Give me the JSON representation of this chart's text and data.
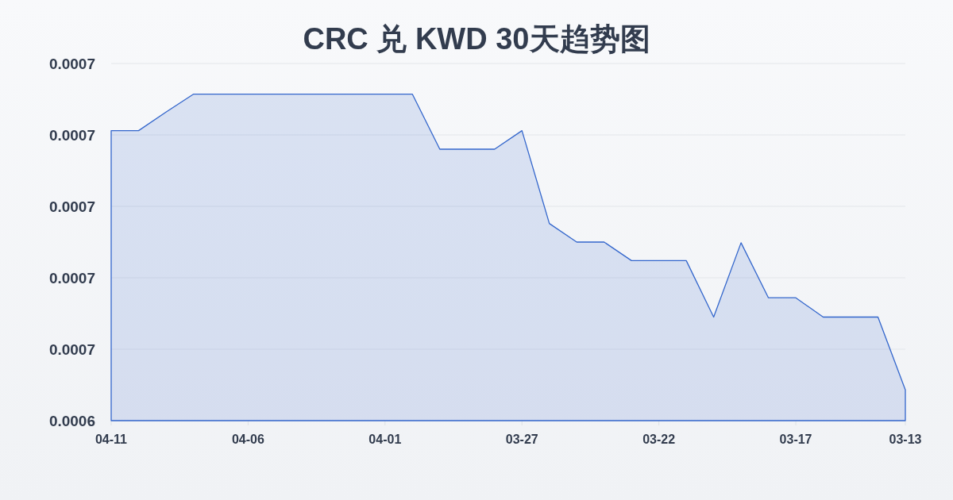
{
  "chart_data": {
    "type": "area",
    "title": "CRC 兑 KWD 30天趋势图",
    "categories": [
      "04-11",
      null,
      null,
      null,
      null,
      "04-06",
      null,
      null,
      null,
      null,
      "04-01",
      null,
      null,
      null,
      null,
      "03-27",
      null,
      null,
      null,
      null,
      "03-22",
      null,
      null,
      null,
      null,
      "03-17",
      null,
      null,
      null,
      "03-13"
    ],
    "values": [
      0.0006806,
      0.0006806,
      0.0006832,
      0.0006857,
      0.0006857,
      0.0006857,
      0.0006857,
      0.0006857,
      0.0006857,
      0.0006857,
      0.0006857,
      0.0006857,
      0.000678,
      0.000678,
      0.000678,
      0.0006806,
      0.0006676,
      0.000665,
      0.000665,
      0.0006624,
      0.0006624,
      0.0006624,
      0.0006545,
      0.0006649,
      0.0006572,
      0.0006572,
      0.0006545,
      0.0006545,
      0.0006545,
      0.0006443
    ],
    "color": "#3366cc",
    "ylim": [
      0.00064,
      0.00069
    ],
    "yticks": [
      {
        "value": 0.00064,
        "label": "0.0006"
      },
      {
        "value": 0.00065,
        "label": "0.0007"
      },
      {
        "value": 0.00066,
        "label": "0.0007"
      },
      {
        "value": 0.00067,
        "label": "0.0007"
      },
      {
        "value": 0.00068,
        "label": "0.0007"
      },
      {
        "value": 0.00069,
        "label": "0.0007"
      }
    ],
    "grid": "y"
  }
}
